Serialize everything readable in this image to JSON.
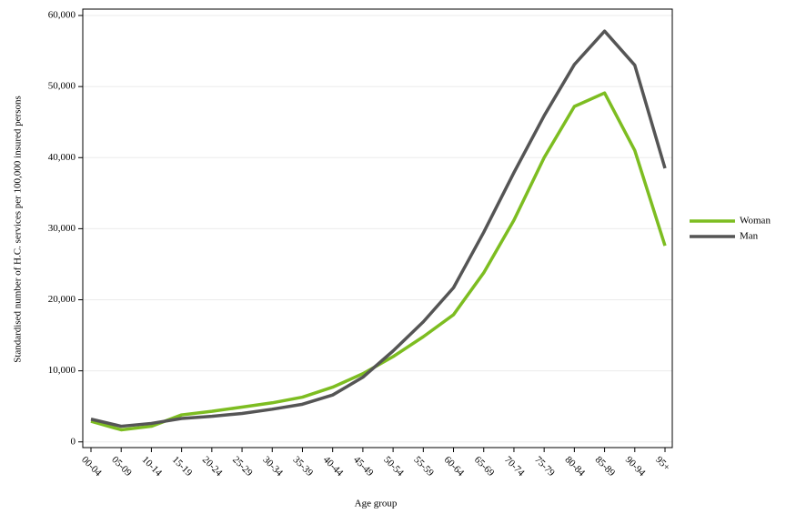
{
  "chart_data": {
    "type": "line",
    "xlabel": "Age group",
    "ylabel": "Standardised number of H.C. services per 100,000 insured persons",
    "categories": [
      "00-04",
      "05-09",
      "10-14",
      "15-19",
      "20-24",
      "25-29",
      "30-34",
      "35-39",
      "40-44",
      "45-49",
      "50-54",
      "55-59",
      "60-64",
      "65-69",
      "70-74",
      "75-79",
      "80-84",
      "85-89",
      "90-94",
      "95+"
    ],
    "series": [
      {
        "name": "Woman",
        "color": "#7dbd21",
        "values": [
          2900,
          1700,
          2200,
          3800,
          4300,
          4900,
          5500,
          6300,
          7700,
          9600,
          12000,
          14800,
          17900,
          23800,
          31200,
          40000,
          47200,
          49100,
          41000,
          27600
        ]
      },
      {
        "name": "Man",
        "color": "#555555",
        "values": [
          3200,
          2200,
          2600,
          3300,
          3600,
          4000,
          4600,
          5300,
          6600,
          9100,
          12800,
          16900,
          21700,
          29500,
          37900,
          45900,
          53100,
          57800,
          53000,
          38500
        ]
      }
    ],
    "ylim": [
      -800,
      60900
    ],
    "yticks": [
      0,
      {
        "value": 10000,
        "label": "10,000"
      },
      {
        "value": 20000,
        "label": "20,000"
      },
      {
        "value": 30000,
        "label": "30,000"
      },
      {
        "value": 40000,
        "label": "40,000"
      },
      {
        "value": 50000,
        "label": "50,000"
      },
      {
        "value": 60000,
        "label": "60,000"
      }
    ],
    "grid": true,
    "legend": "right"
  }
}
